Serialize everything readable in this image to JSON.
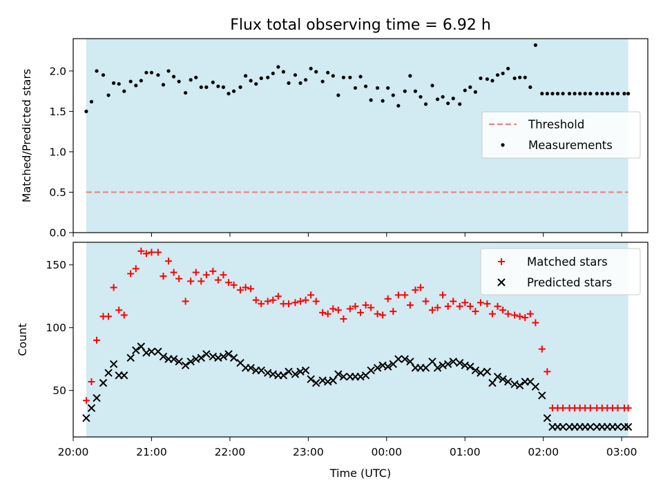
{
  "figure": {
    "title": "Flux total observing time = 6.92 h",
    "xlabel": "Time (UTC)"
  },
  "colors": {
    "band": "#add8e6",
    "measurements": "#000000",
    "threshold": "#f08080",
    "matched": "#ff0000",
    "predicted": "#000000"
  },
  "chart_data": [
    {
      "type": "scatter",
      "panel": "top",
      "ylabel": "Matched/Predicted stars",
      "xlim": [
        "20:00",
        "03:20"
      ],
      "ylim": [
        0,
        2.4
      ],
      "yticks": [
        "0.0",
        "0.5",
        "1.0",
        "1.5",
        "2.0"
      ],
      "shaded_span": [
        "20:10",
        "03:05"
      ],
      "legend_position": "center-right",
      "threshold": {
        "name": "Threshold",
        "value": 0.5,
        "style": "dashed",
        "x_range": [
          "20:10",
          "03:05"
        ]
      },
      "series": [
        {
          "name": "Measurements",
          "x": [
            "20:10",
            "20:14",
            "20:18",
            "20:23",
            "20:27",
            "20:31",
            "20:35",
            "20:39",
            "20:44",
            "20:48",
            "20:52",
            "20:56",
            "21:00",
            "21:05",
            "21:09",
            "21:13",
            "21:17",
            "21:21",
            "21:26",
            "21:30",
            "21:34",
            "21:38",
            "21:42",
            "21:47",
            "21:51",
            "21:55",
            "21:59",
            "22:03",
            "22:08",
            "22:12",
            "22:16",
            "22:20",
            "22:24",
            "22:29",
            "22:33",
            "22:37",
            "22:41",
            "22:45",
            "22:50",
            "22:54",
            "22:58",
            "23:02",
            "23:06",
            "23:11",
            "23:15",
            "23:19",
            "23:23",
            "23:27",
            "23:32",
            "23:36",
            "23:40",
            "23:44",
            "23:48",
            "23:53",
            "23:57",
            "00:01",
            "00:05",
            "00:09",
            "00:14",
            "00:18",
            "00:22",
            "00:26",
            "00:30",
            "00:35",
            "00:39",
            "00:43",
            "00:47",
            "00:51",
            "00:56",
            "01:00",
            "01:04",
            "01:08",
            "01:12",
            "01:17",
            "01:21",
            "01:25",
            "01:29",
            "01:33",
            "01:38",
            "01:42",
            "01:46",
            "01:50",
            "01:54",
            "01:59",
            "02:03",
            "02:07",
            "02:11",
            "02:15",
            "02:20",
            "02:24",
            "02:28",
            "02:32",
            "02:36",
            "02:41",
            "02:45",
            "02:49",
            "02:53",
            "02:57",
            "03:02",
            "03:05"
          ],
          "values": [
            1.5,
            1.62,
            2.0,
            1.95,
            1.7,
            1.85,
            1.84,
            1.75,
            1.87,
            1.82,
            1.88,
            1.98,
            1.98,
            1.95,
            1.83,
            2.0,
            1.93,
            1.87,
            1.73,
            1.89,
            1.92,
            1.8,
            1.8,
            1.86,
            1.81,
            1.8,
            1.72,
            1.75,
            1.8,
            1.94,
            1.88,
            1.84,
            1.91,
            1.92,
            1.97,
            2.05,
            1.99,
            1.85,
            1.95,
            1.85,
            1.89,
            2.03,
            1.99,
            1.87,
            1.98,
            1.94,
            1.7,
            1.92,
            1.92,
            1.79,
            1.93,
            1.81,
            1.64,
            1.79,
            1.63,
            1.79,
            1.7,
            1.57,
            1.75,
            1.94,
            1.75,
            1.68,
            1.59,
            1.82,
            1.65,
            1.68,
            1.6,
            1.66,
            1.59,
            1.76,
            1.8,
            1.74,
            1.91,
            1.9,
            1.88,
            1.95,
            1.97,
            2.03,
            1.91,
            1.92,
            1.92,
            1.8,
            2.32,
            1.72,
            1.72,
            1.72,
            1.72,
            1.72,
            1.72,
            1.72,
            1.72,
            1.72,
            1.72,
            1.72,
            1.72,
            1.72,
            1.72,
            1.72,
            1.72,
            1.72
          ]
        }
      ]
    },
    {
      "type": "scatter",
      "panel": "bottom",
      "ylabel": "Count",
      "xlim": [
        "20:00",
        "03:20"
      ],
      "ylim": [
        13,
        168
      ],
      "yticks": [
        "50",
        "100",
        "150"
      ],
      "xticks": [
        "20:00",
        "21:00",
        "22:00",
        "23:00",
        "00:00",
        "01:00",
        "02:00",
        "03:00"
      ],
      "shaded_span": [
        "20:10",
        "03:05"
      ],
      "legend_position": "top-right",
      "series": [
        {
          "name": "Matched stars",
          "marker": "plus",
          "x": [
            "20:10",
            "20:14",
            "20:18",
            "20:23",
            "20:27",
            "20:31",
            "20:35",
            "20:39",
            "20:44",
            "20:48",
            "20:52",
            "20:56",
            "21:00",
            "21:05",
            "21:09",
            "21:13",
            "21:17",
            "21:21",
            "21:26",
            "21:30",
            "21:34",
            "21:38",
            "21:42",
            "21:47",
            "21:51",
            "21:55",
            "21:59",
            "22:03",
            "22:08",
            "22:12",
            "22:16",
            "22:20",
            "22:24",
            "22:29",
            "22:33",
            "22:37",
            "22:41",
            "22:45",
            "22:50",
            "22:54",
            "22:58",
            "23:02",
            "23:06",
            "23:11",
            "23:15",
            "23:19",
            "23:23",
            "23:27",
            "23:32",
            "23:36",
            "23:40",
            "23:44",
            "23:48",
            "23:53",
            "23:57",
            "00:01",
            "00:05",
            "00:09",
            "00:14",
            "00:18",
            "00:22",
            "00:26",
            "00:30",
            "00:35",
            "00:39",
            "00:43",
            "00:47",
            "00:51",
            "00:56",
            "01:00",
            "01:04",
            "01:08",
            "01:12",
            "01:17",
            "01:21",
            "01:25",
            "01:29",
            "01:33",
            "01:38",
            "01:42",
            "01:46",
            "01:50",
            "01:54",
            "01:59",
            "02:03",
            "02:07",
            "02:11",
            "02:15",
            "02:20",
            "02:24",
            "02:28",
            "02:32",
            "02:36",
            "02:41",
            "02:45",
            "02:49",
            "02:53",
            "02:57",
            "03:02",
            "03:05"
          ],
          "values": [
            42,
            57,
            90,
            109,
            109,
            132,
            114,
            110,
            143,
            147,
            161,
            159,
            160,
            160,
            141,
            153,
            144,
            139,
            121,
            137,
            144,
            137,
            142,
            145,
            138,
            142,
            136,
            134,
            130,
            132,
            131,
            122,
            119,
            121,
            122,
            125,
            119,
            119,
            120,
            121,
            122,
            126,
            121,
            112,
            111,
            115,
            114,
            107,
            115,
            117,
            112,
            118,
            116,
            111,
            110,
            123,
            113,
            126,
            126,
            118,
            130,
            132,
            121,
            114,
            116,
            126,
            117,
            121,
            117,
            120,
            117,
            113,
            120,
            119,
            111,
            117,
            114,
            111,
            110,
            109,
            108,
            111,
            104,
            83,
            65,
            36,
            36,
            36,
            36,
            36,
            36,
            36,
            36,
            36,
            36,
            36,
            36,
            36,
            36,
            36
          ]
        },
        {
          "name": "Predicted stars",
          "marker": "x",
          "x": [
            "20:10",
            "20:14",
            "20:18",
            "20:23",
            "20:27",
            "20:31",
            "20:35",
            "20:39",
            "20:44",
            "20:48",
            "20:52",
            "20:56",
            "21:00",
            "21:05",
            "21:09",
            "21:13",
            "21:17",
            "21:21",
            "21:26",
            "21:30",
            "21:34",
            "21:38",
            "21:42",
            "21:47",
            "21:51",
            "21:55",
            "21:59",
            "22:03",
            "22:08",
            "22:12",
            "22:16",
            "22:20",
            "22:24",
            "22:29",
            "22:33",
            "22:37",
            "22:41",
            "22:45",
            "22:50",
            "22:54",
            "22:58",
            "23:02",
            "23:06",
            "23:11",
            "23:15",
            "23:19",
            "23:23",
            "23:27",
            "23:32",
            "23:36",
            "23:40",
            "23:44",
            "23:48",
            "23:53",
            "23:57",
            "00:01",
            "00:05",
            "00:09",
            "00:14",
            "00:18",
            "00:22",
            "00:26",
            "00:30",
            "00:35",
            "00:39",
            "00:43",
            "00:47",
            "00:51",
            "00:56",
            "01:00",
            "01:04",
            "01:08",
            "01:12",
            "01:17",
            "01:21",
            "01:25",
            "01:29",
            "01:33",
            "01:38",
            "01:42",
            "01:46",
            "01:50",
            "01:54",
            "01:59",
            "02:03",
            "02:07",
            "02:11",
            "02:15",
            "02:20",
            "02:24",
            "02:28",
            "02:32",
            "02:36",
            "02:41",
            "02:45",
            "02:49",
            "02:53",
            "02:57",
            "03:02",
            "03:05"
          ],
          "values": [
            28,
            36,
            44,
            56,
            64,
            71,
            62,
            62,
            76,
            82,
            85,
            80,
            81,
            81,
            77,
            75,
            75,
            73,
            70,
            73,
            75,
            76,
            79,
            77,
            76,
            77,
            79,
            76,
            72,
            68,
            68,
            66,
            66,
            64,
            63,
            62,
            62,
            65,
            63,
            65,
            66,
            59,
            56,
            58,
            57,
            58,
            63,
            61,
            61,
            61,
            61,
            62,
            66,
            68,
            70,
            69,
            71,
            75,
            75,
            73,
            68,
            68,
            68,
            73,
            68,
            70,
            71,
            73,
            72,
            70,
            69,
            66,
            64,
            65,
            56,
            61,
            59,
            57,
            55,
            54,
            57,
            57,
            53,
            46,
            28,
            21,
            21,
            21,
            21,
            21,
            21,
            21,
            21,
            21,
            21,
            21,
            21,
            21,
            21,
            21
          ]
        }
      ]
    }
  ]
}
